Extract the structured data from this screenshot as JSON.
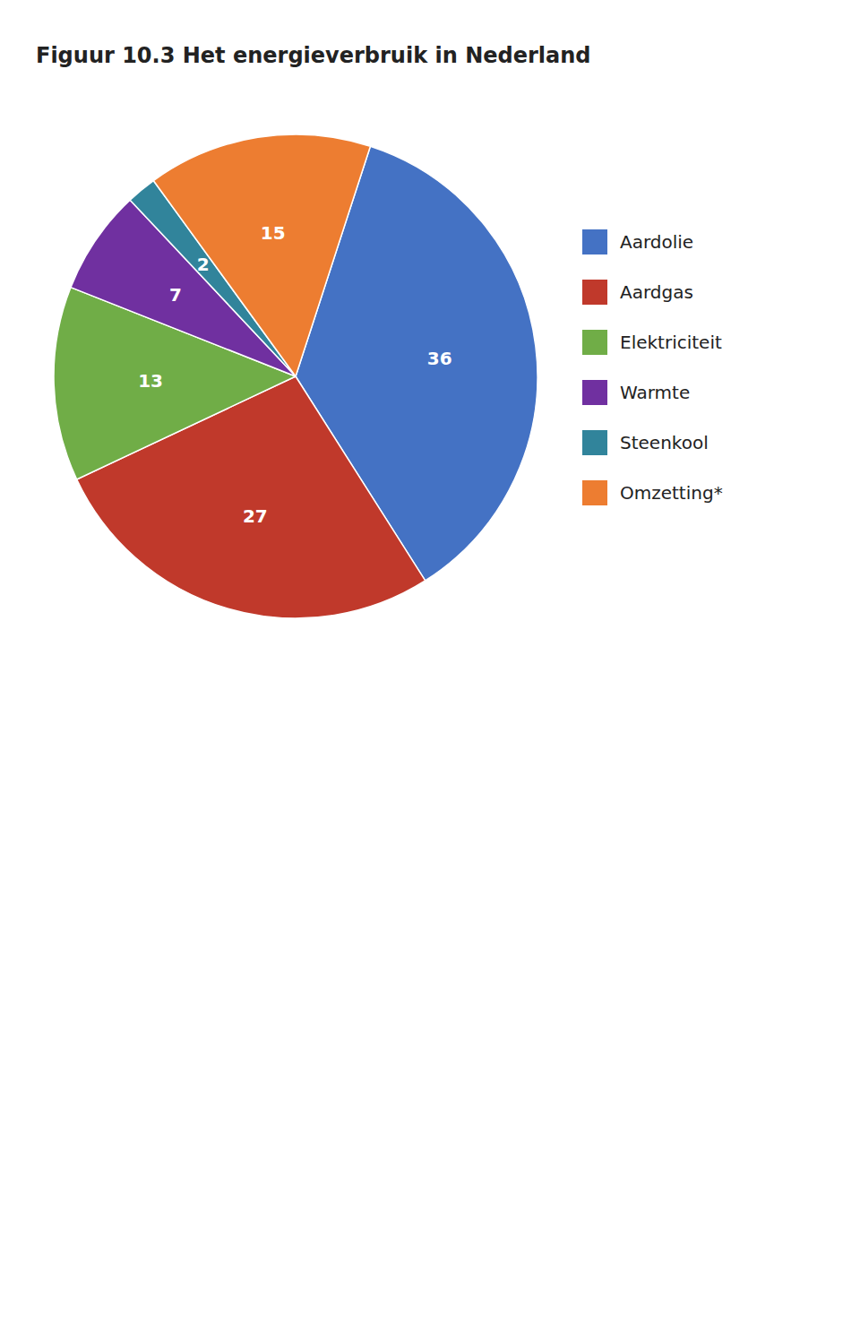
{
  "chart_data": {
    "type": "pie",
    "title": "Figuur 10.3 Het energieverbruik in Nederland",
    "categories": [
      "Aardolie",
      "Aardgas",
      "Elektriciteit",
      "Warmte",
      "Steenkool",
      "Omzetting*"
    ],
    "values": [
      36,
      27,
      13,
      7,
      2,
      15
    ],
    "colors": [
      "#4472c4",
      "#c0392b",
      "#70ad47",
      "#7030a0",
      "#31849b",
      "#ed7d31"
    ],
    "data_labels": true,
    "legend": "right"
  }
}
